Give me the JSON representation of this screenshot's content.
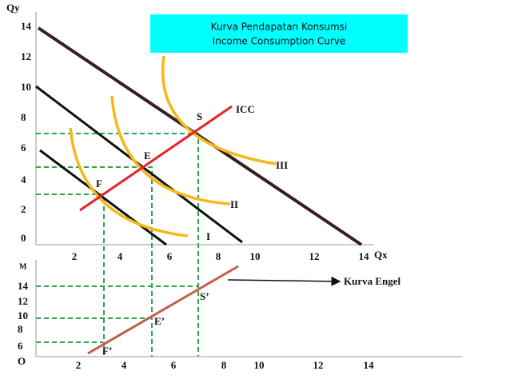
{
  "title": {
    "line1": "Kurva Pendapatan Konsumsi",
    "line2": "Income Consumption Curve"
  },
  "top_panel": {
    "y_axis_label": "Qy",
    "x_axis_label": "Qx",
    "y_ticks": [
      "14",
      "12",
      "10",
      "8",
      "6",
      "4",
      "2",
      "0"
    ],
    "x_ticks": [
      "2",
      "4",
      "6",
      "8",
      "10",
      "12",
      "14"
    ],
    "points": [
      "F",
      "E",
      "S"
    ],
    "curve_labels": [
      "I",
      "II",
      "III"
    ],
    "icc_label": "ICC"
  },
  "bottom_panel": {
    "y_axis_label": "M",
    "y_ticks": [
      "14",
      "12",
      "10",
      "8",
      "6",
      "O"
    ],
    "x_ticks": [
      "2",
      "4",
      "6",
      "8",
      "10",
      "12",
      "14"
    ],
    "points": [
      "F’",
      "E’",
      "S’"
    ],
    "engel_label": "Kurva Engel"
  }
}
